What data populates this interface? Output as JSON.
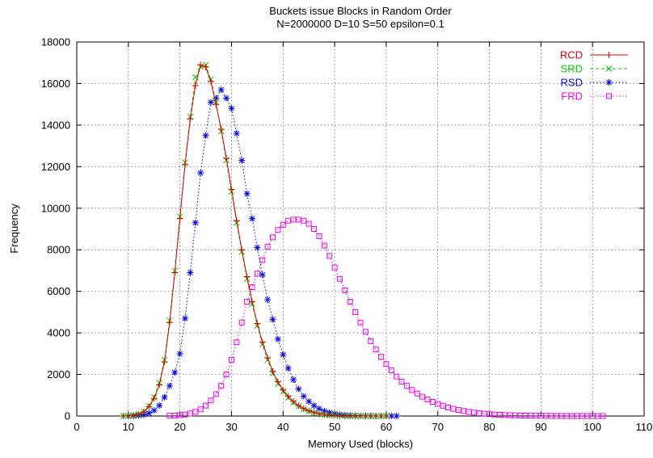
{
  "chart_data": {
    "type": "line",
    "title": "Buckets issue Blocks in Random Order",
    "subtitle": "N=2000000 D=10 S=50 epsilon=0.1",
    "xlabel": "Memory Used (blocks)",
    "ylabel": "Frequency",
    "xlim": [
      0,
      110
    ],
    "ylim": [
      0,
      18000
    ],
    "xticks": [
      0,
      10,
      20,
      30,
      40,
      50,
      60,
      70,
      80,
      90,
      100,
      110
    ],
    "yticks": [
      0,
      2000,
      4000,
      6000,
      8000,
      10000,
      12000,
      14000,
      16000,
      18000
    ],
    "grid": true,
    "legend_position": "top-right",
    "series": [
      {
        "name": "RCD",
        "color": "#dd0000",
        "marker": "plus",
        "line": "solid",
        "x": [
          9,
          10,
          11,
          12,
          13,
          14,
          15,
          16,
          17,
          18,
          19,
          20,
          21,
          22,
          23,
          24,
          25,
          26,
          27,
          28,
          29,
          30,
          31,
          32,
          33,
          34,
          35,
          36,
          37,
          38,
          39,
          40,
          41,
          42,
          43,
          44,
          45,
          46,
          47,
          48,
          49,
          50,
          51,
          52,
          53,
          54,
          55,
          56,
          57,
          58,
          59,
          60
        ],
        "y": [
          0,
          10,
          30,
          80,
          200,
          450,
          850,
          1500,
          2600,
          4500,
          6900,
          9500,
          12100,
          14300,
          15900,
          16900,
          16800,
          16100,
          15000,
          13800,
          12400,
          10900,
          9400,
          8000,
          6700,
          5500,
          4450,
          3550,
          2800,
          2150,
          1650,
          1250,
          950,
          700,
          500,
          360,
          250,
          170,
          115,
          75,
          50,
          32,
          20,
          12,
          7,
          4,
          2,
          1,
          0,
          0,
          0,
          0
        ],
        "ylabel_units": ""
      },
      {
        "name": "SRD",
        "color": "#00cc00",
        "marker": "x",
        "line": "dashed",
        "x": [
          9,
          10,
          11,
          12,
          13,
          14,
          15,
          16,
          17,
          18,
          19,
          20,
          21,
          22,
          23,
          24,
          25,
          26,
          27,
          28,
          29,
          30,
          31,
          32,
          33,
          34,
          35,
          36,
          37,
          38,
          39,
          40,
          41,
          42,
          43,
          44,
          45,
          46,
          47,
          48,
          49,
          50,
          51,
          52,
          53,
          54,
          55,
          56,
          57,
          58,
          59,
          60
        ],
        "y": [
          0,
          10,
          35,
          90,
          220,
          480,
          900,
          1600,
          2700,
          4600,
          7000,
          9600,
          12200,
          14400,
          16300,
          16800,
          16900,
          16200,
          15100,
          13700,
          12300,
          10800,
          9300,
          7900,
          6600,
          5400,
          4350,
          3450,
          2700,
          2050,
          1550,
          1180,
          880,
          650,
          470,
          330,
          230,
          155,
          100,
          65,
          42,
          27,
          17,
          10,
          6,
          3,
          2,
          1,
          0,
          0,
          0,
          0
        ],
        "ylabel_units": ""
      },
      {
        "name": "RSD",
        "color": "#0000ee",
        "marker": "star",
        "line": "dotted",
        "x": [
          10,
          11,
          12,
          13,
          14,
          15,
          16,
          17,
          18,
          19,
          20,
          21,
          22,
          23,
          24,
          25,
          26,
          27,
          28,
          29,
          30,
          31,
          32,
          33,
          34,
          35,
          36,
          37,
          38,
          39,
          40,
          41,
          42,
          43,
          44,
          45,
          46,
          47,
          48,
          49,
          50,
          51,
          52,
          53,
          54,
          55,
          56,
          57,
          58,
          59,
          60,
          61,
          62
        ],
        "y": [
          0,
          10,
          25,
          60,
          130,
          270,
          500,
          900,
          1450,
          2100,
          3000,
          4700,
          6900,
          9300,
          11700,
          13500,
          15100,
          15300,
          15700,
          15300,
          14800,
          13600,
          12300,
          10700,
          9500,
          8100,
          6800,
          5600,
          4650,
          3700,
          2950,
          2300,
          1750,
          1300,
          950,
          700,
          500,
          350,
          240,
          165,
          110,
          70,
          45,
          28,
          18,
          11,
          7,
          4,
          2,
          1,
          0,
          0,
          0
        ],
        "ylabel_units": ""
      },
      {
        "name": "FRD",
        "color": "#ee00ee",
        "marker": "box",
        "line": "dotted",
        "x": [
          18,
          19,
          20,
          21,
          22,
          23,
          24,
          25,
          26,
          27,
          28,
          29,
          30,
          31,
          32,
          33,
          34,
          35,
          36,
          37,
          38,
          39,
          40,
          41,
          42,
          43,
          44,
          45,
          46,
          47,
          48,
          49,
          50,
          51,
          52,
          53,
          54,
          55,
          56,
          57,
          58,
          59,
          60,
          61,
          62,
          63,
          64,
          65,
          66,
          67,
          68,
          69,
          70,
          71,
          72,
          73,
          74,
          75,
          76,
          77,
          78,
          79,
          80,
          81,
          82,
          83,
          84,
          85,
          86,
          87,
          88,
          89,
          90,
          91,
          92,
          93,
          94,
          95,
          96,
          97,
          98,
          99,
          100,
          101,
          102
        ],
        "y": [
          10,
          20,
          40,
          70,
          120,
          200,
          320,
          500,
          750,
          1050,
          1450,
          2000,
          2700,
          3550,
          4500,
          5500,
          6200,
          6850,
          7500,
          8150,
          8600,
          8950,
          9200,
          9400,
          9450,
          9450,
          9400,
          9250,
          9000,
          8650,
          8200,
          7700,
          7150,
          6600,
          6050,
          5500,
          5000,
          4500,
          4050,
          3600,
          3200,
          2850,
          2500,
          2200,
          1900,
          1650,
          1450,
          1250,
          1080,
          930,
          800,
          680,
          580,
          490,
          410,
          345,
          290,
          240,
          200,
          165,
          135,
          110,
          90,
          72,
          58,
          47,
          38,
          30,
          24,
          19,
          15,
          12,
          9,
          7,
          5,
          4,
          3,
          2,
          2,
          1,
          1,
          0,
          0,
          0,
          0
        ],
        "ylabel_units": ""
      }
    ]
  }
}
